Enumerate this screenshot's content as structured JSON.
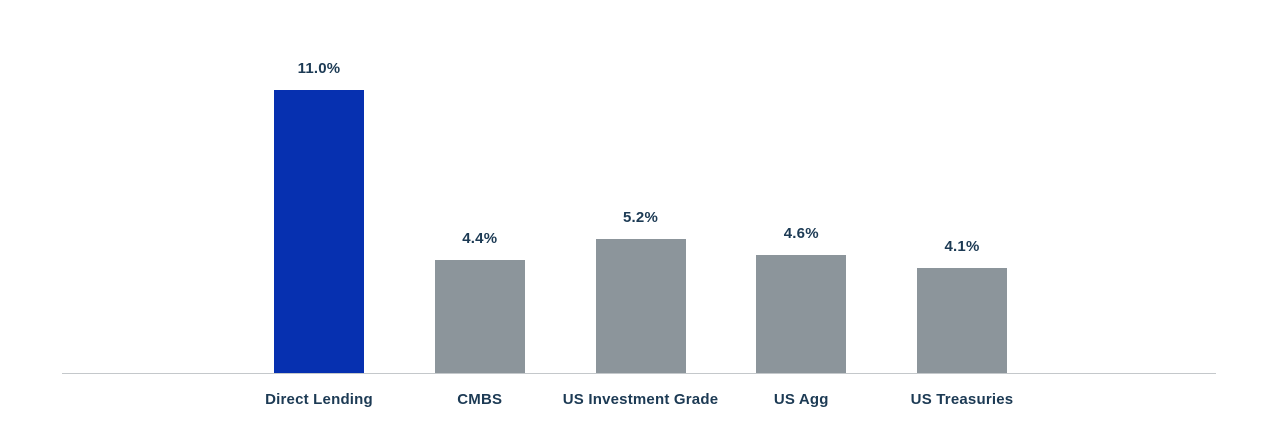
{
  "chart_data": {
    "type": "bar",
    "title": "",
    "xlabel": "",
    "ylabel": "",
    "categories": [
      "Direct Lending",
      "CMBS",
      "US Investment Grade",
      "US Agg",
      "US Treasuries"
    ],
    "values": [
      11.0,
      4.4,
      5.2,
      4.6,
      4.1
    ],
    "value_labels": [
      "11.0%",
      "4.4%",
      "5.2%",
      "4.6%",
      "4.1%"
    ],
    "ylim": [
      0,
      12
    ],
    "grid": false,
    "legend": false,
    "bar_colors": [
      "#0630B0",
      "#8C959B",
      "#8C959B",
      "#8C959B",
      "#8C959B"
    ],
    "colors": {
      "highlight_bar": "#0630B0",
      "default_bar": "#8C959B",
      "value_label_text": "#1C3A54",
      "category_label_text": "#1C3A54",
      "axis_line": "#C4C8CB",
      "background": "#FFFFFF"
    }
  }
}
